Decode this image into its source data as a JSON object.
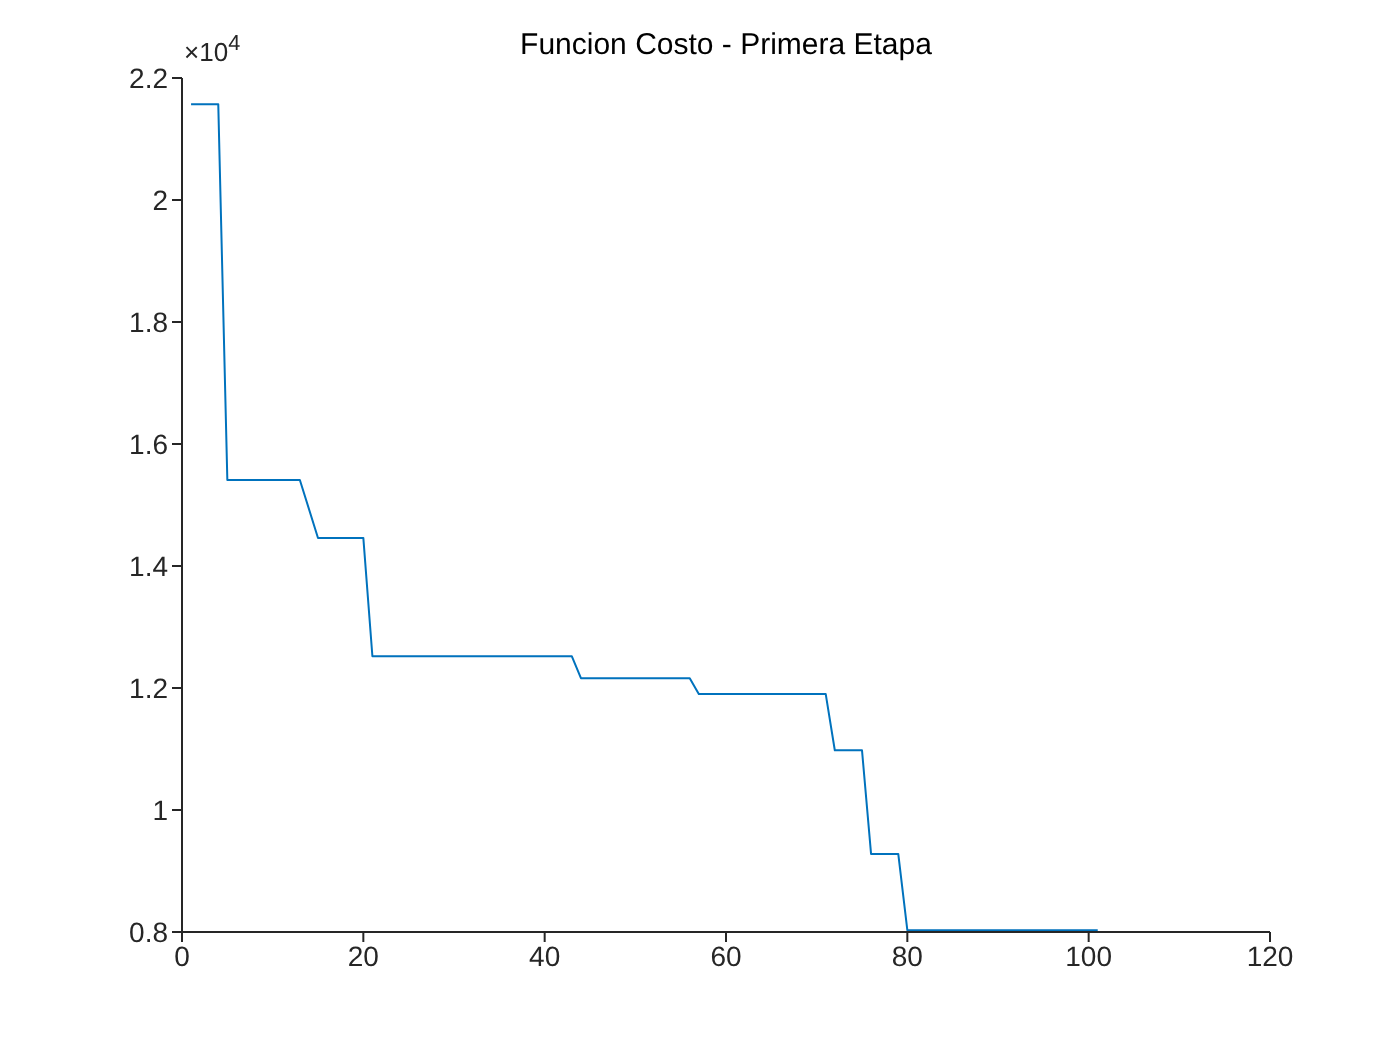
{
  "chart_data": {
    "type": "line",
    "title": "Funcion Costo - Primera Etapa",
    "annotations": [
      "×10$^{4}$"
    ],
    "x": [
      1,
      4,
      5,
      13,
      15,
      20,
      21,
      43,
      44,
      56,
      57,
      71,
      72,
      75,
      76,
      79,
      80,
      101
    ],
    "series": [
      {
        "color": "#0072bd",
        "values": [
          2.157,
          2.157,
          1.541,
          1.541,
          1.446,
          1.446,
          1.252,
          1.252,
          1.216,
          1.216,
          1.19,
          1.19,
          1.098,
          1.098,
          0.928,
          0.928,
          0.803,
          0.803
        ]
      }
    ],
    "xlim": [
      0,
      120
    ],
    "xticks": [
      0,
      20,
      40,
      60,
      80,
      100,
      120
    ],
    "ylim": [
      0.8,
      2.2
    ],
    "yticks": [
      0.8,
      1,
      1.2,
      1.4,
      1.6,
      1.8,
      2,
      2.2
    ],
    "grid": false,
    "legend": false,
    "line_style": "solid",
    "marker": "none"
  }
}
